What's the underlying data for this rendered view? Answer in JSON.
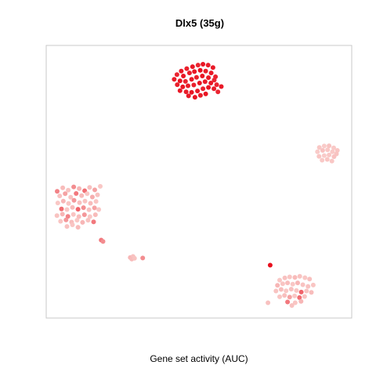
{
  "chart_data": {
    "type": "scatter",
    "title": "Dlx5 (35g)",
    "xlabel": "Gene set activity (AUC)",
    "ylabel": "",
    "xlim": [
      0,
      100
    ],
    "ylim": [
      0,
      100
    ],
    "grid": false,
    "axes_visible": false,
    "color_scale": {
      "low": "#fbe0dc",
      "high": "#e8101e"
    },
    "clusters": [
      {
        "name": "top",
        "points": [
          [
            44.2,
            90.6,
            0.95
          ],
          [
            46.0,
            91.5,
            0.92
          ],
          [
            47.9,
            92.2,
            0.96
          ],
          [
            49.7,
            92.8,
            0.9
          ],
          [
            51.3,
            93.1,
            0.97
          ],
          [
            53.0,
            92.8,
            0.93
          ],
          [
            54.6,
            91.9,
            0.95
          ],
          [
            42.8,
            89.3,
            0.9
          ],
          [
            44.9,
            88.8,
            0.97
          ],
          [
            46.9,
            89.9,
            0.94
          ],
          [
            48.5,
            90.4,
            0.96
          ],
          [
            50.4,
            90.9,
            1.0
          ],
          [
            52.2,
            90.6,
            0.93
          ],
          [
            54.0,
            89.9,
            0.95
          ],
          [
            55.4,
            88.5,
            0.92
          ],
          [
            41.9,
            87.6,
            0.94
          ],
          [
            43.8,
            87.0,
            0.98
          ],
          [
            45.6,
            86.8,
            0.91
          ],
          [
            47.6,
            87.6,
            0.96
          ],
          [
            49.2,
            88.3,
            0.93
          ],
          [
            51.1,
            88.8,
            0.97
          ],
          [
            53.1,
            88.2,
            0.95
          ],
          [
            55.0,
            87.3,
            0.9
          ],
          [
            42.9,
            85.6,
            0.93
          ],
          [
            44.7,
            84.8,
            0.97
          ],
          [
            46.4,
            85.2,
            0.95
          ],
          [
            48.3,
            85.5,
            0.92
          ],
          [
            50.2,
            86.2,
            0.98
          ],
          [
            52.0,
            86.7,
            0.94
          ],
          [
            53.9,
            86.2,
            0.96
          ],
          [
            55.8,
            85.6,
            0.91
          ],
          [
            43.8,
            83.4,
            0.96
          ],
          [
            45.8,
            83.0,
            0.93
          ],
          [
            47.6,
            82.8,
            0.97
          ],
          [
            49.5,
            83.3,
            0.95
          ],
          [
            51.3,
            84.1,
            0.92
          ],
          [
            53.1,
            84.6,
            0.96
          ],
          [
            54.9,
            84.1,
            0.94
          ],
          [
            46.6,
            81.5,
            0.95
          ],
          [
            48.7,
            81.0,
            0.98
          ],
          [
            50.5,
            81.7,
            0.93
          ],
          [
            52.2,
            82.2,
            0.97
          ],
          [
            56.2,
            83.0,
            0.9
          ],
          [
            57.3,
            84.9,
            0.95
          ]
        ]
      },
      {
        "name": "right",
        "points": [
          [
            89.4,
            62.6,
            0.12
          ],
          [
            91.0,
            63.1,
            0.1
          ],
          [
            92.6,
            63.2,
            0.14
          ],
          [
            94.1,
            62.4,
            0.11
          ],
          [
            95.3,
            61.5,
            0.13
          ],
          [
            88.8,
            61.0,
            0.1
          ],
          [
            90.5,
            61.5,
            0.15
          ],
          [
            92.1,
            61.7,
            0.12
          ],
          [
            93.7,
            61.0,
            0.11
          ],
          [
            95.0,
            60.2,
            0.14
          ],
          [
            89.3,
            59.3,
            0.13
          ],
          [
            91.0,
            59.6,
            0.1
          ],
          [
            92.6,
            59.8,
            0.12
          ],
          [
            94.2,
            59.2,
            0.15
          ],
          [
            90.3,
            57.9,
            0.11
          ],
          [
            92.0,
            58.2,
            0.13
          ],
          [
            93.5,
            57.6,
            0.12
          ]
        ]
      },
      {
        "name": "left",
        "points": [
          [
            3.6,
            46.5,
            0.45
          ],
          [
            5.4,
            47.8,
            0.18
          ],
          [
            7.2,
            46.9,
            0.14
          ],
          [
            9.0,
            48.1,
            0.4
          ],
          [
            10.8,
            47.5,
            0.2
          ],
          [
            12.6,
            46.7,
            0.55
          ],
          [
            14.2,
            47.9,
            0.16
          ],
          [
            15.9,
            47.0,
            0.3
          ],
          [
            17.7,
            48.3,
            0.12
          ],
          [
            4.4,
            44.8,
            0.15
          ],
          [
            6.2,
            45.6,
            0.3
          ],
          [
            8.0,
            44.3,
            0.14
          ],
          [
            9.8,
            45.7,
            0.5
          ],
          [
            11.6,
            44.9,
            0.18
          ],
          [
            13.4,
            45.6,
            0.12
          ],
          [
            15.1,
            44.4,
            0.25
          ],
          [
            16.8,
            45.2,
            0.15
          ],
          [
            3.8,
            42.2,
            0.12
          ],
          [
            5.6,
            42.9,
            0.2
          ],
          [
            7.3,
            42.0,
            0.13
          ],
          [
            9.1,
            43.2,
            0.35
          ],
          [
            10.9,
            42.3,
            0.16
          ],
          [
            12.7,
            42.9,
            0.14
          ],
          [
            14.5,
            42.1,
            0.18
          ],
          [
            16.3,
            42.8,
            0.13
          ],
          [
            5.0,
            40.0,
            0.55
          ],
          [
            6.8,
            39.8,
            0.12
          ],
          [
            8.6,
            40.6,
            0.18
          ],
          [
            10.4,
            39.9,
            0.6
          ],
          [
            12.2,
            40.5,
            0.4
          ],
          [
            14.0,
            39.7,
            0.15
          ],
          [
            15.8,
            40.4,
            0.3
          ],
          [
            17.2,
            39.8,
            0.12
          ],
          [
            3.5,
            37.6,
            0.14
          ],
          [
            5.3,
            38.1,
            0.2
          ],
          [
            7.1,
            37.3,
            0.45
          ],
          [
            8.9,
            38.0,
            0.13
          ],
          [
            10.7,
            37.2,
            0.17
          ],
          [
            12.5,
            37.9,
            0.35
          ],
          [
            14.3,
            37.2,
            0.12
          ],
          [
            16.1,
            37.9,
            0.18
          ],
          [
            4.7,
            35.5,
            0.13
          ],
          [
            6.5,
            36.0,
            0.35
          ],
          [
            8.3,
            35.2,
            0.17
          ],
          [
            10.1,
            35.9,
            0.12
          ],
          [
            11.9,
            35.1,
            0.2
          ],
          [
            13.7,
            35.9,
            0.14
          ],
          [
            6.8,
            33.6,
            0.15
          ],
          [
            8.6,
            34.2,
            0.13
          ],
          [
            10.4,
            33.3,
            0.18
          ],
          [
            15.5,
            35.3,
            0.5
          ]
        ]
      },
      {
        "name": "small-left",
        "points": [
          [
            18.0,
            28.6,
            0.5
          ],
          [
            18.6,
            28.1,
            0.4
          ]
        ]
      },
      {
        "name": "small-mid",
        "points": [
          [
            27.5,
            22.2,
            0.2
          ],
          [
            28.4,
            22.6,
            0.15
          ],
          [
            28.0,
            21.6,
            0.18
          ],
          [
            28.9,
            21.9,
            0.14
          ],
          [
            31.6,
            22.0,
            0.4
          ]
        ]
      },
      {
        "name": "bottom-right",
        "points": [
          [
            73.3,
            19.4,
            1.0
          ],
          [
            76.4,
            13.9,
            0.12
          ],
          [
            78.1,
            14.7,
            0.15
          ],
          [
            79.7,
            15.1,
            0.13
          ],
          [
            81.4,
            14.9,
            0.18
          ],
          [
            83.0,
            15.3,
            0.14
          ],
          [
            84.7,
            14.8,
            0.12
          ],
          [
            86.2,
            14.3,
            0.16
          ],
          [
            75.7,
            12.0,
            0.2
          ],
          [
            77.4,
            12.6,
            0.13
          ],
          [
            79.0,
            12.9,
            0.17
          ],
          [
            80.7,
            12.4,
            0.12
          ],
          [
            82.3,
            12.9,
            0.2
          ],
          [
            84.0,
            12.2,
            0.14
          ],
          [
            85.7,
            11.6,
            0.15
          ],
          [
            87.4,
            12.1,
            0.13
          ],
          [
            75.2,
            9.9,
            0.14
          ],
          [
            76.9,
            10.5,
            0.17
          ],
          [
            78.5,
            10.0,
            0.12
          ],
          [
            80.2,
            10.6,
            0.15
          ],
          [
            81.9,
            10.1,
            0.13
          ],
          [
            83.5,
            9.5,
            0.6
          ],
          [
            85.2,
            9.9,
            0.14
          ],
          [
            86.8,
            9.4,
            0.17
          ],
          [
            76.4,
            7.8,
            0.13
          ],
          [
            78.0,
            8.3,
            0.16
          ],
          [
            79.7,
            7.7,
            0.3
          ],
          [
            81.3,
            8.1,
            0.12
          ],
          [
            82.9,
            7.5,
            0.55
          ],
          [
            84.6,
            7.9,
            0.14
          ],
          [
            72.6,
            5.6,
            0.15
          ],
          [
            79.0,
            5.9,
            0.5
          ],
          [
            81.5,
            5.6,
            0.13
          ],
          [
            83.4,
            6.1,
            0.2
          ],
          [
            80.4,
            4.6,
            0.15
          ]
        ]
      }
    ]
  }
}
